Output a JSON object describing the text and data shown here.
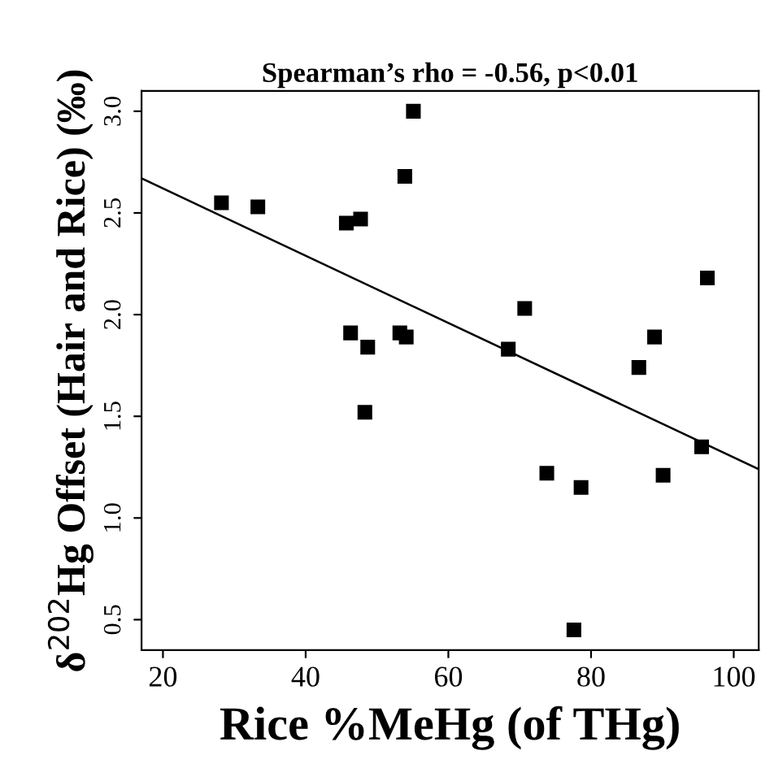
{
  "chart_data": {
    "type": "scatter",
    "title": "Spearman’s rho = -0.56, p<0.01",
    "xlabel": "Rice %MeHg (of THg)",
    "ylabel": "δ$^{202}$Hg Offset (Hair and Rice) (‰)",
    "grid": false,
    "legend": false,
    "series": [
      {
        "marker": "square",
        "color": "#000000",
        "x": [
          28.2,
          33.3,
          45.7,
          47.7,
          53.9,
          55.1,
          46.3,
          48.7,
          53.2,
          54.1,
          48.3,
          70.7,
          68.4,
          96.3,
          88.9,
          86.7,
          95.5,
          73.8,
          78.6,
          90.1,
          77.6
        ],
        "values": [
          2.55,
          2.53,
          2.45,
          2.47,
          2.68,
          3.0,
          1.91,
          1.84,
          1.91,
          1.89,
          1.52,
          2.03,
          1.83,
          2.18,
          1.89,
          1.74,
          1.35,
          1.22,
          1.15,
          1.21,
          0.45
        ]
      },
      {
        "type": "line",
        "color": "#000000",
        "x": [
          17,
          103.5
        ],
        "values": [
          2.67,
          1.24
        ]
      }
    ],
    "xlim": [
      17,
      103.5
    ],
    "ylim": [
      0.35,
      3.1
    ],
    "xticks": [
      20,
      40,
      60,
      80,
      100
    ],
    "yticks": [
      0.5,
      {
        "value": 1,
        "label": "1.0"
      },
      1.5,
      {
        "value": 2,
        "label": "2.0"
      },
      2.5,
      {
        "value": 3,
        "label": "3.0"
      }
    ]
  }
}
